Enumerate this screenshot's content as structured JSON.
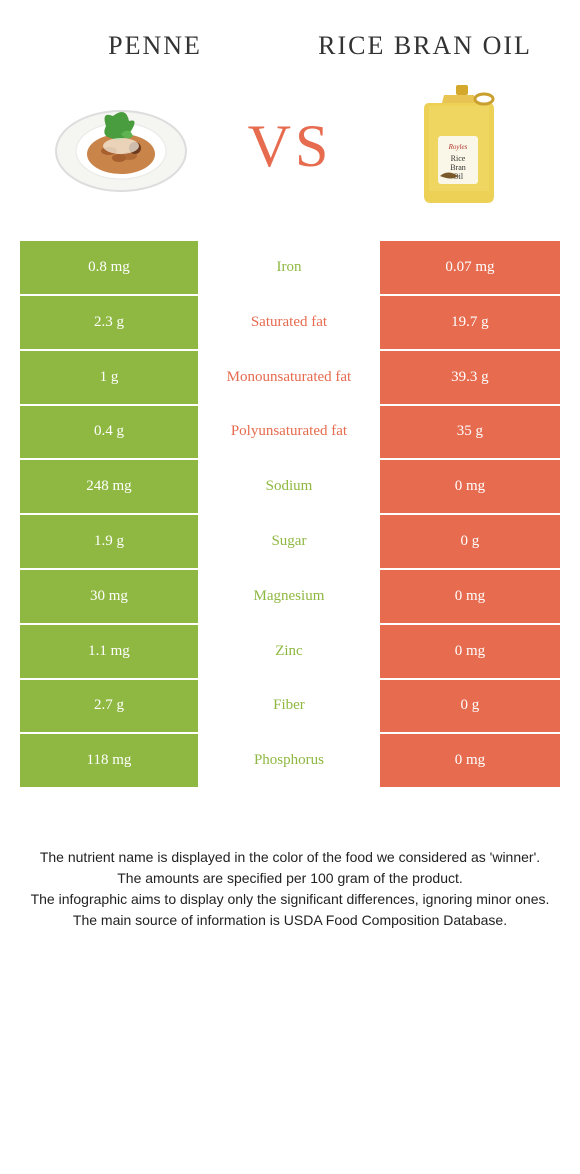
{
  "colors": {
    "left": "#8fb842",
    "right": "#e66b4f",
    "mid_bg": "#ffffff",
    "vs": "#e66b4f",
    "title": "#333333",
    "row_text": "#ffffff",
    "footer_text": "#222222"
  },
  "header": {
    "left_title": "PENNE",
    "right_title": "RICE BRAN OIL",
    "vs_label": "VS"
  },
  "table": {
    "type": "comparison-table",
    "rows": [
      {
        "label": "Iron",
        "left": "0.8 mg",
        "right": "0.07 mg",
        "winner": "left"
      },
      {
        "label": "Saturated fat",
        "left": "2.3 g",
        "right": "19.7 g",
        "winner": "right"
      },
      {
        "label": "Monounsaturated fat",
        "left": "1 g",
        "right": "39.3 g",
        "winner": "right"
      },
      {
        "label": "Polyunsaturated fat",
        "left": "0.4 g",
        "right": "35 g",
        "winner": "right"
      },
      {
        "label": "Sodium",
        "left": "248 mg",
        "right": "0 mg",
        "winner": "left"
      },
      {
        "label": "Sugar",
        "left": "1.9 g",
        "right": "0 g",
        "winner": "left"
      },
      {
        "label": "Magnesium",
        "left": "30 mg",
        "right": "0 mg",
        "winner": "left"
      },
      {
        "label": "Zinc",
        "left": "1.1 mg",
        "right": "0 mg",
        "winner": "left"
      },
      {
        "label": "Fiber",
        "left": "2.7 g",
        "right": "0 g",
        "winner": "left"
      },
      {
        "label": "Phosphorus",
        "left": "118 mg",
        "right": "0 mg",
        "winner": "left"
      }
    ]
  },
  "footer": {
    "line1": "The nutrient name is displayed in the color of the food we considered as 'winner'.",
    "line2": "The amounts are specified per 100 gram of the product.",
    "line3": "The infographic aims to display only the significant differences, ignoring minor ones.",
    "line4": "The main source of information is USDA Food Composition Database."
  }
}
